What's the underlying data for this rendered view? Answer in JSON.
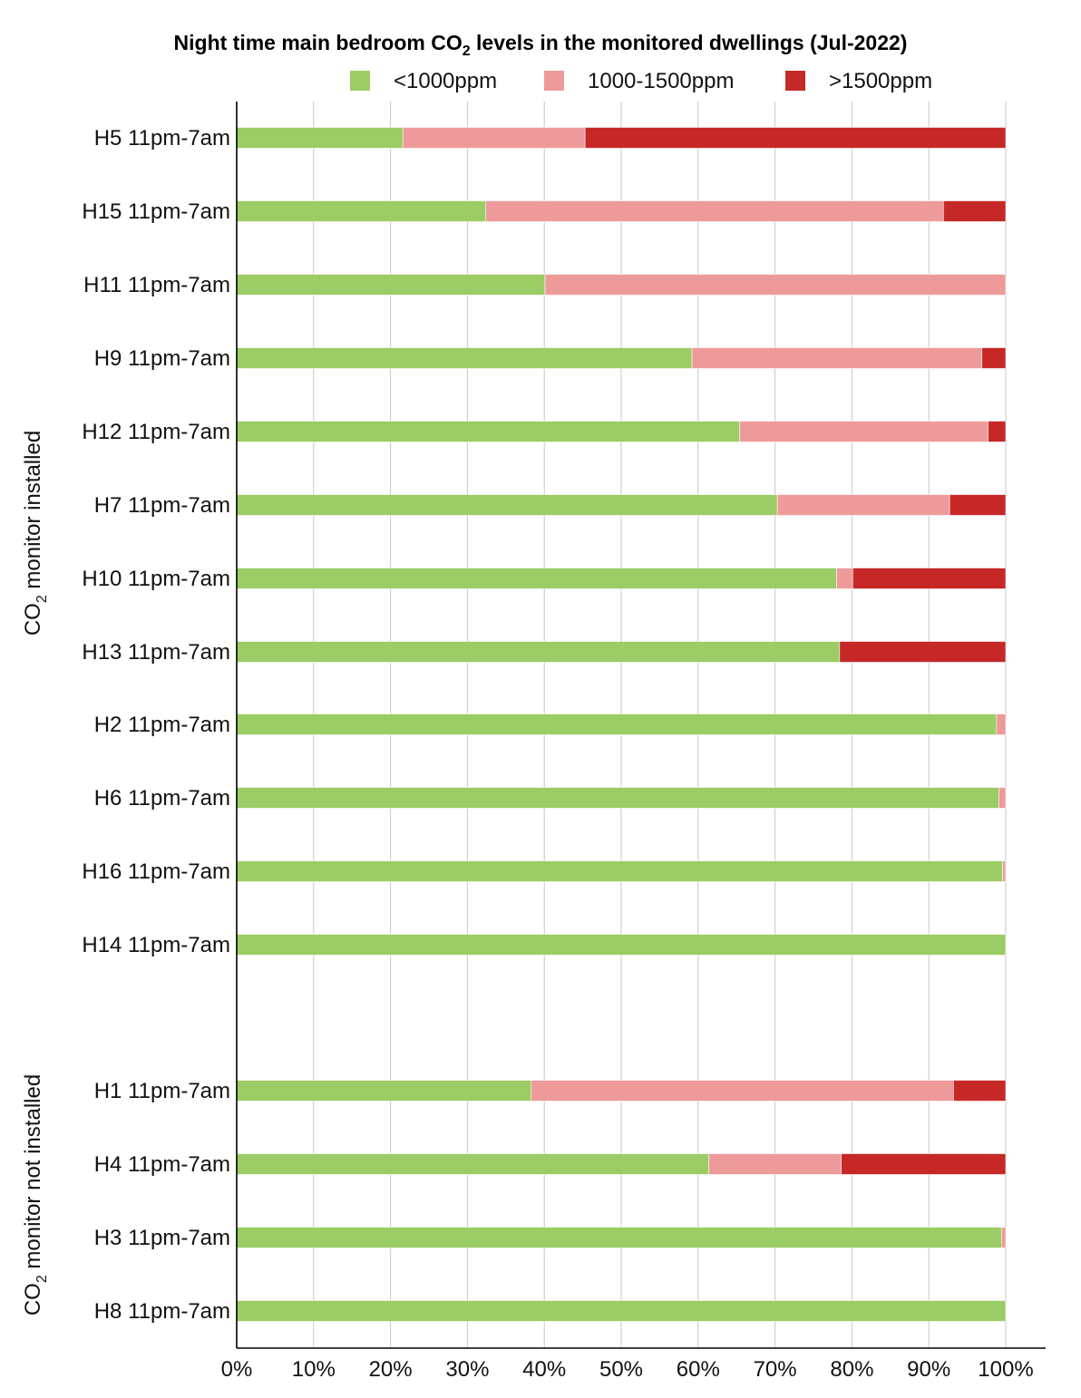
{
  "chart_data": {
    "type": "bar",
    "orientation": "horizontal",
    "stacked": true,
    "title": "Night time main bedroom CO2 levels in the monitored dwellings (Jul-2022)",
    "title_parts": {
      "before": "Night time main bedroom CO",
      "subscript": "2",
      "after": " levels in the monitored dwellings (Jul-2022)"
    },
    "legend_position": "top",
    "grid": true,
    "xlim": [
      0,
      100
    ],
    "x_ticks": [
      "0%",
      "10%",
      "20%",
      "30%",
      "40%",
      "50%",
      "60%",
      "70%",
      "80%",
      "90%",
      "100%"
    ],
    "series": [
      {
        "name": "<1000ppm",
        "color": "#9ccc65"
      },
      {
        "name": "1000-1500ppm",
        "color": "#ef9a9a"
      },
      {
        "name": ">1500ppm",
        "color": "#c62828"
      }
    ],
    "groups": [
      {
        "label_parts": {
          "before": "CO",
          "subscript": "2",
          "after": " monitor installed"
        },
        "categories": [
          {
            "label": "H5 11pm-7am",
            "values": [
              21.6,
              23.7,
              54.7
            ]
          },
          {
            "label": "H15 11pm-7am",
            "values": [
              32.4,
              59.5,
              8.1
            ]
          },
          {
            "label": "H11 11pm-7am",
            "values": [
              40.1,
              59.9,
              0
            ]
          },
          {
            "label": "H9 11pm-7am",
            "values": [
              59.2,
              37.7,
              3.1
            ]
          },
          {
            "label": "H12 11pm-7am",
            "values": [
              65.4,
              32.3,
              2.3
            ]
          },
          {
            "label": "H7 11pm-7am",
            "values": [
              70.3,
              22.4,
              7.3
            ]
          },
          {
            "label": "H10 11pm-7am",
            "values": [
              78.0,
              2.1,
              19.9
            ]
          },
          {
            "label": "H13 11pm-7am",
            "values": [
              78.4,
              0,
              21.6
            ]
          },
          {
            "label": "H2 11pm-7am",
            "values": [
              98.8,
              1.2,
              0
            ]
          },
          {
            "label": "H6 11pm-7am",
            "values": [
              99.1,
              0.9,
              0
            ]
          },
          {
            "label": "H16 11pm-7am",
            "values": [
              99.6,
              0.4,
              0
            ]
          },
          {
            "label": "H14 11pm-7am",
            "values": [
              100,
              0,
              0
            ]
          }
        ]
      },
      {
        "label_parts": {
          "before": "CO",
          "subscript": "2",
          "after": " monitor not installed"
        },
        "categories": [
          {
            "label": "H1 11pm-7am",
            "values": [
              38.3,
              54.9,
              6.8
            ]
          },
          {
            "label": "H4 11pm-7am",
            "values": [
              61.4,
              17.2,
              21.4
            ]
          },
          {
            "label": "H3 11pm-7am",
            "values": [
              99.5,
              0.5,
              0
            ]
          },
          {
            "label": "H8 11pm-7am",
            "values": [
              100,
              0,
              0
            ]
          }
        ]
      }
    ]
  }
}
